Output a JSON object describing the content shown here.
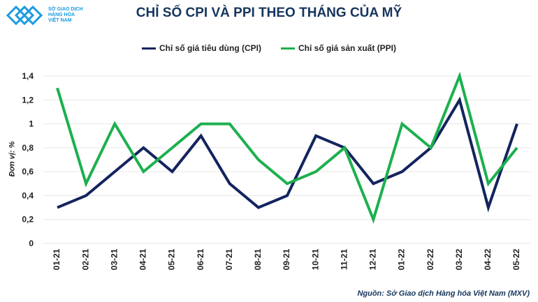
{
  "logo": {
    "lines": [
      "SỞ GIAO DỊCH",
      "HÀNG HÓA",
      "VIỆT NAM"
    ]
  },
  "chart_data": {
    "type": "line",
    "title": "CHỈ SỐ CPI VÀ PPI THEO THÁNG CỦA MỸ",
    "ylabel": "Đơn vị: %",
    "xlabel": "",
    "categories": [
      "01-21",
      "02-21",
      "03-21",
      "04-21",
      "05-21",
      "06-21",
      "07-21",
      "08-21",
      "09-21",
      "10-21",
      "11-21",
      "12-21",
      "01-22",
      "02-22",
      "03-22",
      "04-22",
      "05-22"
    ],
    "series": [
      {
        "name": "Chỉ số giá tiêu dùng (CPI)",
        "color": "#13245e",
        "values": [
          0.3,
          0.4,
          0.6,
          0.8,
          0.6,
          0.9,
          0.5,
          0.3,
          0.4,
          0.9,
          0.8,
          0.5,
          0.6,
          0.8,
          1.2,
          0.3,
          1.0
        ]
      },
      {
        "name": "Chỉ số giá sản xuất (PPI)",
        "color": "#1db04f",
        "values": [
          1.3,
          0.5,
          1.0,
          0.6,
          0.8,
          1.0,
          1.0,
          0.7,
          0.5,
          0.6,
          0.8,
          0.2,
          1.0,
          0.8,
          1.4,
          0.5,
          0.8
        ]
      }
    ],
    "yticks": [
      "0",
      "0,2",
      "0,4",
      "0,6",
      "0,8",
      "1",
      "1,2",
      "1,4"
    ],
    "ylim": [
      0,
      1.4
    ],
    "grid": true,
    "legend": "top-center"
  },
  "source": "Nguồn: Sở Giao dịch Hàng hóa Việt Nam (MXV)"
}
